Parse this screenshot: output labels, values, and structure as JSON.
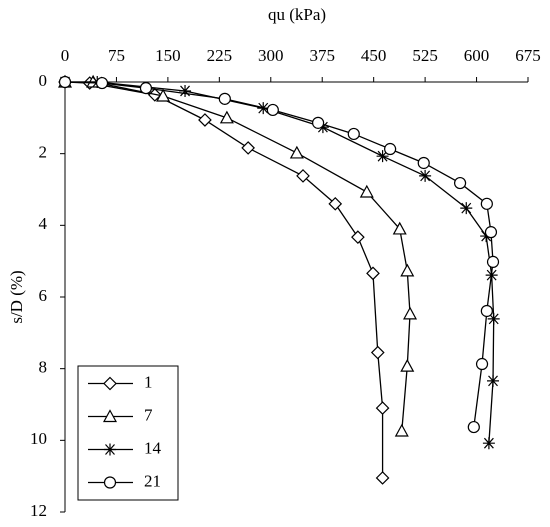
{
  "chart_data": {
    "type": "line",
    "x_label": "qu (kPa)",
    "y_label": "s/D (%)",
    "xlim": [
      0,
      675
    ],
    "xticks": [
      0,
      75,
      150,
      225,
      300,
      375,
      450,
      525,
      600,
      675
    ],
    "ylim": [
      0,
      12
    ],
    "yticks": [
      0,
      2,
      4,
      6,
      8,
      10,
      12
    ],
    "y_inverted": true,
    "x_axis_position": "top",
    "legend_position": "lower left",
    "series": [
      {
        "name": "1",
        "color": "#000000",
        "marker": "diamond",
        "x": [
          0,
          36,
          131,
          204,
          267,
          347,
          394,
          427,
          449,
          456,
          463,
          463
        ],
        "values": [
          0,
          0.03,
          0.36,
          1.06,
          1.84,
          2.62,
          3.4,
          4.33,
          5.34,
          7.55,
          9.1,
          11.05
        ]
      },
      {
        "name": "7",
        "color": "#000000",
        "marker": "triangle",
        "x": [
          0,
          41,
          143,
          236,
          338,
          440,
          488,
          499,
          503,
          499,
          491
        ],
        "values": [
          0,
          0,
          0.39,
          1.0,
          1.98,
          3.07,
          4.1,
          5.27,
          6.47,
          7.93,
          9.74
        ]
      },
      {
        "name": "14",
        "color": "#000000",
        "marker": "star",
        "x": [
          0,
          47,
          175,
          289,
          376,
          463,
          525,
          585,
          614,
          622,
          625,
          624,
          618
        ],
        "values": [
          0,
          0,
          0.25,
          0.73,
          1.26,
          2.07,
          2.62,
          3.52,
          4.3,
          5.39,
          6.61,
          8.34,
          10.08
        ]
      },
      {
        "name": "21",
        "color": "#000000",
        "marker": "circle",
        "x": [
          0,
          54,
          118,
          233,
          303,
          369,
          421,
          474,
          523,
          576,
          615,
          621,
          624,
          615,
          608,
          596
        ],
        "values": [
          0,
          0.03,
          0.17,
          0.47,
          0.78,
          1.14,
          1.45,
          1.87,
          2.26,
          2.82,
          3.4,
          4.19,
          5.02,
          6.39,
          7.87,
          9.63
        ]
      }
    ]
  }
}
